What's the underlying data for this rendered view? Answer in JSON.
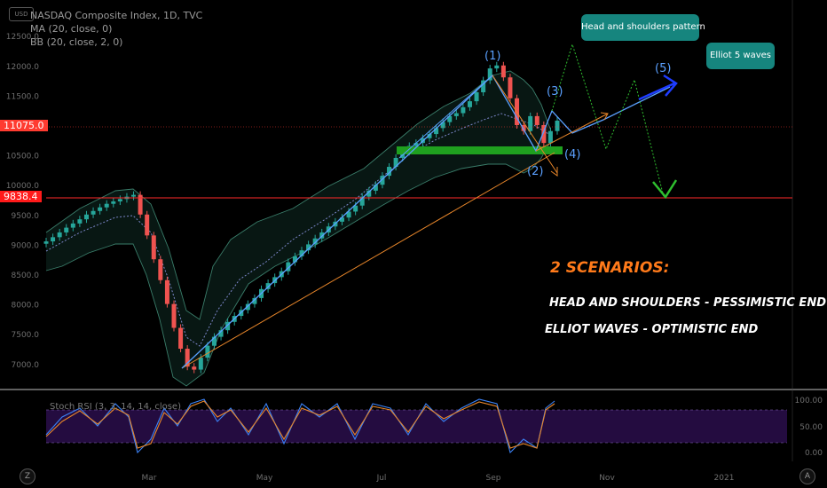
{
  "header": {
    "title": "NASDAQ Composite Index, 1D, TVC",
    "ma": "MA (20, close, 0)",
    "bb": "BB (20, close, 2, 0)",
    "logo": "USD"
  },
  "price_tags": {
    "current": "11075.0",
    "support": "9838.4"
  },
  "annotations": {
    "hs_bubble": "Head and shoulders pattern",
    "ew_bubble": "Elliot 5 waves",
    "wave_1": "(1)",
    "wave_2": "(2)",
    "wave_3": "(3)",
    "wave_4": "(4)",
    "wave_5": "(5)",
    "scenarios_title": "2 SCENARIOS:",
    "scenario_1": "HEAD AND SHOULDERS - PESSIMISTIC END",
    "scenario_2": "ELLIOT WAVES - OPTIMISTIC END"
  },
  "oscillator": {
    "label": "Stoch RSI (3, 3, 14, 14, close)",
    "levels": [
      "100.00",
      "50.00",
      "0.00"
    ]
  },
  "corner_buttons": {
    "left": "Z",
    "right": "A"
  },
  "colors": {
    "background": "#000000",
    "up_candle": "#26a69a",
    "down_candle": "#ef5350",
    "ma_line": "#7b86c9",
    "bollinger": "#3a7d6a",
    "support_line": "#ff2a2a",
    "current_price": "#ff3b30",
    "trendline": "#e8862a",
    "support_zone": "#1fa01f",
    "hs_projection": "#2fbf2f",
    "elliot_projection": "#5aa0ff",
    "wave_arrow": "#1e3cff",
    "scenario_title": "#ff7a1a",
    "oscillator_band": "#2a0f4a"
  },
  "chart_data": {
    "type": "candlestick",
    "title": "NASDAQ Composite Index, 1D, TVC",
    "x_ticks": [
      "Mar",
      "May",
      "Jul",
      "Sep",
      "Nov",
      "2021"
    ],
    "y_ticks": [
      "7000.0",
      "7500.0",
      "8000.0",
      "8500.0",
      "9000.0",
      "9500.0",
      "10000.0",
      "10500.0",
      "11000.0",
      "11500.0",
      "12000.0",
      "12500.0"
    ],
    "ylim": [
      6700,
      12800
    ],
    "close_series": [
      9050,
      9120,
      9200,
      9280,
      9350,
      9420,
      9500,
      9560,
      9620,
      9680,
      9720,
      9760,
      9800,
      9830,
      9500,
      9150,
      8750,
      8400,
      8000,
      7600,
      7250,
      6950,
      6900,
      7100,
      7300,
      7450,
      7560,
      7700,
      7800,
      7900,
      8000,
      8100,
      8250,
      8350,
      8450,
      8550,
      8700,
      8800,
      8900,
      9000,
      9100,
      9200,
      9300,
      9380,
      9450,
      9550,
      9650,
      9800,
      9900,
      10000,
      10150,
      10300,
      10450,
      10550,
      10650,
      10700,
      10780,
      10850,
      10950,
      11050,
      11150,
      11200,
      11300,
      11400,
      11550,
      11750,
      11950,
      12000,
      11800,
      11450,
      11000,
      10900,
      11150,
      11000,
      10700,
      10900,
      11075
    ],
    "support_level": 9838.4,
    "current_price": 11075.0,
    "elliot_wave_points": [
      "(1)",
      "(2)",
      "(3)",
      "(4)",
      "(5)"
    ],
    "oscillator_levels": [
      100,
      50,
      0
    ],
    "grid": false
  }
}
